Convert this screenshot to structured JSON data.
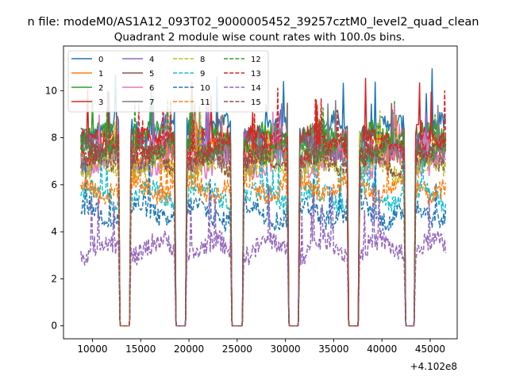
{
  "chart_data": {
    "type": "line",
    "suptitle": "n file: modeM0/AS1A12_093T02_9000005452_39257cztM0_level2_quad_clean",
    "title": "Quadrant 2 module wise count rates with 100.0s bins.",
    "xlabel": "",
    "ylabel": "",
    "x_offset_label": "+4.102e8",
    "xlim": [
      7000,
      47800
    ],
    "ylim": [
      -0.55,
      11.9
    ],
    "x_ticks": [
      10000,
      15000,
      20000,
      25000,
      30000,
      35000,
      40000,
      45000
    ],
    "x_tick_labels": [
      "10000",
      "15000",
      "20000",
      "25000",
      "30000",
      "35000",
      "40000",
      "45000"
    ],
    "y_ticks": [
      0,
      2,
      4,
      6,
      8,
      10
    ],
    "y_tick_labels": [
      "0",
      "2",
      "4",
      "6",
      "8",
      "10"
    ],
    "grid": false,
    "legend_position": "top-left",
    "segments": [
      [
        8800,
        12700
      ],
      [
        14000,
        18500
      ],
      [
        19800,
        24300
      ],
      [
        25700,
        30200
      ],
      [
        31500,
        36400
      ],
      [
        37700,
        42300
      ],
      [
        43500,
        46600
      ]
    ],
    "gaps_zero": [
      [
        12900,
        13800
      ],
      [
        18700,
        19600
      ],
      [
        24500,
        25500
      ],
      [
        30400,
        31300
      ],
      [
        36600,
        37500
      ],
      [
        42500,
        43300
      ]
    ],
    "bin_seconds": 100,
    "series": [
      {
        "name": "0",
        "color": "#1f77b4",
        "dash": "solid",
        "level": 8.4
      },
      {
        "name": "1",
        "color": "#ff7f0e",
        "dash": "solid",
        "level": 7.4
      },
      {
        "name": "2",
        "color": "#2ca02c",
        "dash": "solid",
        "level": 8.0
      },
      {
        "name": "3",
        "color": "#d62728",
        "dash": "solid",
        "level": 7.8
      },
      {
        "name": "4",
        "color": "#9467bd",
        "dash": "solid",
        "level": 7.5
      },
      {
        "name": "5",
        "color": "#8c564b",
        "dash": "solid",
        "level": 7.7
      },
      {
        "name": "6",
        "color": "#e377c2",
        "dash": "solid",
        "level": 7.0
      },
      {
        "name": "7",
        "color": "#7f7f7f",
        "dash": "solid",
        "level": 7.2
      },
      {
        "name": "8",
        "color": "#bcbd22",
        "dash": "dashed",
        "level": 6.7
      },
      {
        "name": "9",
        "color": "#17becf",
        "dash": "dashed",
        "level": 5.5
      },
      {
        "name": "10",
        "color": "#1f77b4",
        "dash": "dashed",
        "level": 4.8
      },
      {
        "name": "11",
        "color": "#ff7f0e",
        "dash": "dashed",
        "level": 5.9
      },
      {
        "name": "12",
        "color": "#2ca02c",
        "dash": "dashed",
        "level": 7.6
      },
      {
        "name": "13",
        "color": "#d62728",
        "dash": "dashed",
        "level": 7.5
      },
      {
        "name": "14",
        "color": "#9467bd",
        "dash": "dashed",
        "level": 3.3
      },
      {
        "name": "15",
        "color": "#8c564b",
        "dash": "dashed",
        "level": 7.0
      }
    ]
  }
}
